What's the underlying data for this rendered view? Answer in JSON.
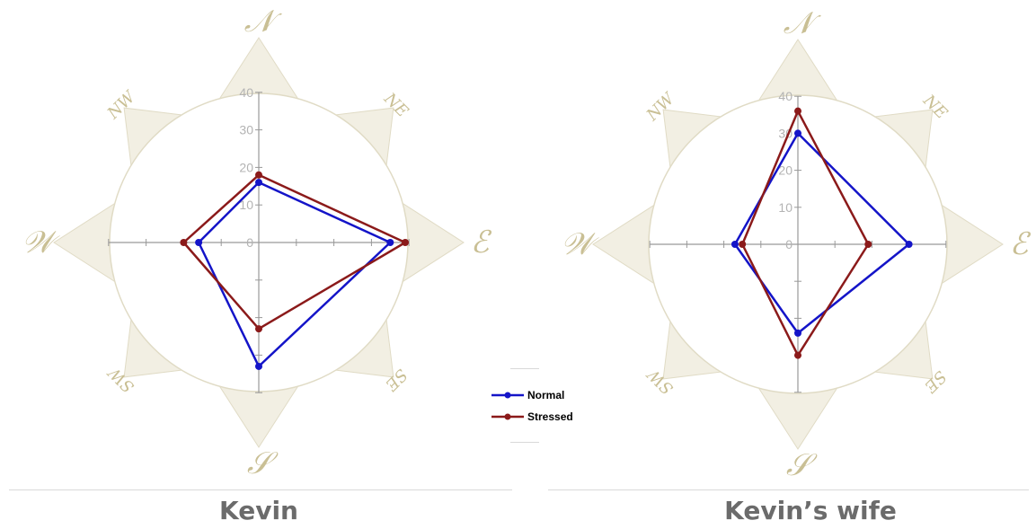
{
  "colors": {
    "background": "#ffffff",
    "compass_fill": "#f2efe3",
    "compass_stroke": "#e0dbc5",
    "compass_letter": "#c9bf94",
    "axis": "#999999",
    "tick_label": "#b3b3b3",
    "normal": "#1414c8",
    "stressed": "#8b1a1a",
    "caption": "#6b6b6b"
  },
  "legend": {
    "items": [
      {
        "name": "Normal",
        "color": "#1414c8"
      },
      {
        "name": "Stressed",
        "color": "#8b1a1a"
      }
    ]
  },
  "chart_data": [
    {
      "type": "line",
      "caption": "Kevin",
      "compass_labels": [
        "N",
        "NE",
        "E",
        "SE",
        "S",
        "SW",
        "W",
        "NW"
      ],
      "axis_range": [
        -40,
        40
      ],
      "tick_labels": [
        "0",
        "10",
        "20",
        "30",
        "40"
      ],
      "series": [
        {
          "name": "Normal",
          "points": [
            {
              "x": 0,
              "y": 16
            },
            {
              "x": 35,
              "y": 0
            },
            {
              "x": 0,
              "y": -33
            },
            {
              "x": -16,
              "y": 0
            }
          ]
        },
        {
          "name": "Stressed",
          "points": [
            {
              "x": 0,
              "y": 18
            },
            {
              "x": 39,
              "y": 0
            },
            {
              "x": 0,
              "y": -23
            },
            {
              "x": -20,
              "y": 0
            }
          ]
        }
      ]
    },
    {
      "type": "line",
      "caption": "Kevin’s wife",
      "compass_labels": [
        "N",
        "NE",
        "E",
        "SE",
        "S",
        "SW",
        "W",
        "NW"
      ],
      "axis_range": [
        -40,
        40
      ],
      "tick_labels": [
        "0",
        "10",
        "20",
        "30",
        "40"
      ],
      "series": [
        {
          "name": "Normal",
          "points": [
            {
              "x": 0,
              "y": 30
            },
            {
              "x": 30,
              "y": 0
            },
            {
              "x": 0,
              "y": -24
            },
            {
              "x": -17,
              "y": 0
            }
          ]
        },
        {
          "name": "Stressed",
          "points": [
            {
              "x": 0,
              "y": 36
            },
            {
              "x": 19,
              "y": 0
            },
            {
              "x": 0,
              "y": -30
            },
            {
              "x": -15,
              "y": 0
            }
          ]
        }
      ]
    }
  ]
}
